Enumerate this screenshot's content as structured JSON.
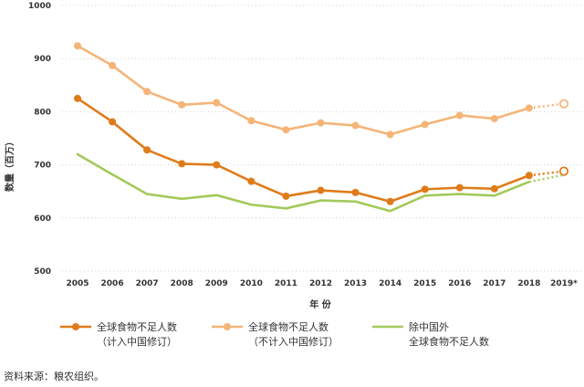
{
  "chart_data": {
    "type": "line",
    "ylabel": "数量（百万）",
    "xlabel": "年 份",
    "ylim": [
      500,
      1000
    ],
    "yticks": [
      500,
      600,
      700,
      800,
      900,
      1000
    ],
    "categories": [
      "2005",
      "2006",
      "2007",
      "2008",
      "2009",
      "2010",
      "2011",
      "2012",
      "2013",
      "2014",
      "2015",
      "2016",
      "2017",
      "2018",
      "2019*"
    ],
    "grid": true,
    "legend_position": "bottom",
    "series": [
      {
        "name_line1": "全球食物不足人数",
        "name_line2": "（计入中国修订）",
        "color": "#e07b1a",
        "marker": true,
        "values": [
          825,
          781,
          728,
          702,
          700,
          669,
          641,
          652,
          648,
          631,
          654,
          657,
          655,
          680,
          688
        ],
        "projected_from_index": 13
      },
      {
        "name_line1": "全球食物不足人数",
        "name_line2": "（不计入中国修订）",
        "color": "#f5b477",
        "marker": true,
        "values": [
          924,
          887,
          838,
          813,
          817,
          783,
          766,
          779,
          774,
          757,
          776,
          793,
          787,
          807,
          815
        ],
        "projected_from_index": 13
      },
      {
        "name_line1": "除中国外",
        "name_line2": "全球食物不足人数",
        "color": "#a3c95a",
        "marker": false,
        "values": [
          720,
          682,
          645,
          636,
          643,
          625,
          618,
          633,
          631,
          613,
          642,
          645,
          642,
          668,
          681
        ],
        "projected_from_index": 13
      }
    ]
  },
  "source_text": "资料来源：粮农组织。"
}
